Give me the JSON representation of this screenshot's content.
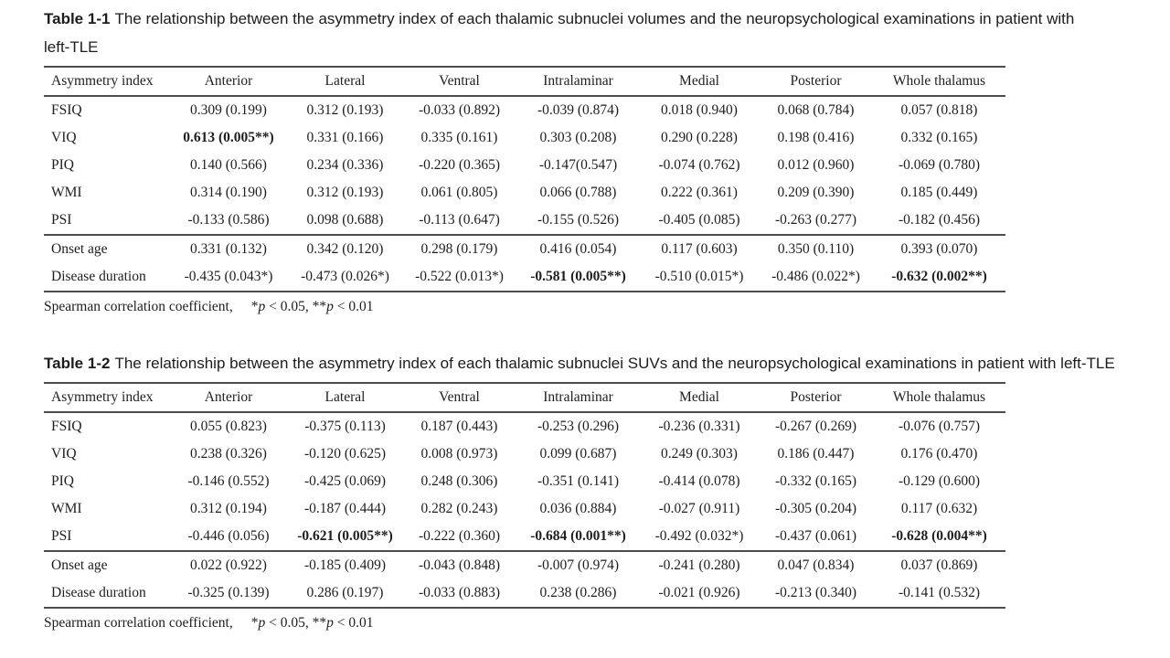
{
  "tables": [
    {
      "label": "Table 1-1",
      "title": "The relationship between the asymmetry index of each thalamic subnuclei volumes and the neuropsychological examinations in patient with left-TLE",
      "columns": [
        "Asymmetry index",
        "Anterior",
        "Lateral",
        "Ventral",
        "Intralaminar",
        "Medial",
        "Posterior",
        "Whole thalamus"
      ],
      "rows": [
        {
          "label": "FSIQ",
          "group": "main",
          "cells": [
            "0.309 (0.199)",
            "0.312 (0.193)",
            "-0.033 (0.892)",
            "-0.039 (0.874)",
            "0.018 (0.940)",
            "0.068 (0.784)",
            "0.057 (0.818)"
          ]
        },
        {
          "label": "VIQ",
          "group": "main",
          "cells": [
            {
              "t": "0.613 (0.005**)",
              "b": true
            },
            "0.331 (0.166)",
            "0.335 (0.161)",
            "0.303 (0.208)",
            "0.290 (0.228)",
            "0.198 (0.416)",
            "0.332 (0.165)"
          ]
        },
        {
          "label": "PIQ",
          "group": "main",
          "cells": [
            "0.140 (0.566)",
            "0.234 (0.336)",
            "-0.220 (0.365)",
            "-0.147(0.547)",
            "-0.074 (0.762)",
            "0.012 (0.960)",
            "-0.069 (0.780)"
          ]
        },
        {
          "label": "WMI",
          "group": "main",
          "cells": [
            "0.314 (0.190)",
            "0.312 (0.193)",
            "0.061 (0.805)",
            "0.066 (0.788)",
            "0.222 (0.361)",
            "0.209 (0.390)",
            "0.185 (0.449)"
          ]
        },
        {
          "label": "PSI",
          "group": "main",
          "cells": [
            "-0.133 (0.586)",
            "0.098 (0.688)",
            "-0.113 (0.647)",
            "-0.155 (0.526)",
            "-0.405 (0.085)",
            "-0.263 (0.277)",
            "-0.182 (0.456)"
          ]
        },
        {
          "label": "Onset age",
          "group": "clinical",
          "cells": [
            "0.331 (0.132)",
            "0.342 (0.120)",
            "0.298 (0.179)",
            "0.416 (0.054)",
            "0.117 (0.603)",
            "0.350 (0.110)",
            "0.393 (0.070)"
          ]
        },
        {
          "label": "Disease duration",
          "group": "clinical",
          "cells": [
            "-0.435 (0.043*)",
            "-0.473 (0.026*)",
            "-0.522 (0.013*)",
            {
              "t": "-0.581 (0.005**)",
              "b": true
            },
            "-0.510 (0.015*)",
            "-0.486 (0.022*)",
            {
              "t": "-0.632 (0.002**)",
              "b": true
            }
          ]
        }
      ]
    },
    {
      "label": "Table 1-2",
      "title": "The relationship between the asymmetry index of each thalamic subnuclei SUVs and the neuropsychological examinations in patient with left-TLE",
      "columns": [
        "Asymmetry index",
        "Anterior",
        "Lateral",
        "Ventral",
        "Intralaminar",
        "Medial",
        "Posterior",
        "Whole thalamus"
      ],
      "rows": [
        {
          "label": "FSIQ",
          "group": "main",
          "cells": [
            "0.055 (0.823)",
            "-0.375 (0.113)",
            "0.187 (0.443)",
            "-0.253 (0.296)",
            "-0.236 (0.331)",
            "-0.267 (0.269)",
            "-0.076 (0.757)"
          ]
        },
        {
          "label": "VIQ",
          "group": "main",
          "cells": [
            "0.238 (0.326)",
            "-0.120 (0.625)",
            "0.008 (0.973)",
            "0.099 (0.687)",
            "0.249 (0.303)",
            "0.186 (0.447)",
            "0.176 (0.470)"
          ]
        },
        {
          "label": "PIQ",
          "group": "main",
          "cells": [
            "-0.146 (0.552)",
            "-0.425 (0.069)",
            "0.248 (0.306)",
            "-0.351 (0.141)",
            "-0.414 (0.078)",
            "-0.332 (0.165)",
            "-0.129 (0.600)"
          ]
        },
        {
          "label": "WMI",
          "group": "main",
          "cells": [
            "0.312 (0.194)",
            "-0.187 (0.444)",
            "0.282 (0.243)",
            "0.036 (0.884)",
            "-0.027 (0.911)",
            "-0.305 (0.204)",
            "0.117 (0.632)"
          ]
        },
        {
          "label": "PSI",
          "group": "main",
          "cells": [
            "-0.446 (0.056)",
            {
              "t": "-0.621 (0.005**)",
              "b": true
            },
            "-0.222 (0.360)",
            {
              "t": "-0.684 (0.001**)",
              "b": true
            },
            "-0.492 (0.032*)",
            "-0.437 (0.061)",
            {
              "t": "-0.628 (0.004**)",
              "b": true
            }
          ]
        },
        {
          "label": "Onset age",
          "group": "clinical",
          "cells": [
            "0.022 (0.922)",
            "-0.185 (0.409)",
            "-0.043 (0.848)",
            "-0.007 (0.974)",
            "-0.241 (0.280)",
            "0.047 (0.834)",
            "0.037 (0.869)"
          ]
        },
        {
          "label": "Disease duration",
          "group": "clinical",
          "cells": [
            "-0.325 (0.139)",
            "0.286 (0.197)",
            "-0.033 (0.883)",
            "0.238 (0.286)",
            "-0.021 (0.926)",
            "-0.213 (0.340)",
            "-0.141 (0.532)"
          ]
        }
      ]
    }
  ],
  "footnote": {
    "prefix": "Spearman correlation coefficient,",
    "sig1_star": "*",
    "var": "p",
    "sig1_rest": " < 0.05, ",
    "sig2_star": "**",
    "sig2_rest": " < 0.01"
  }
}
